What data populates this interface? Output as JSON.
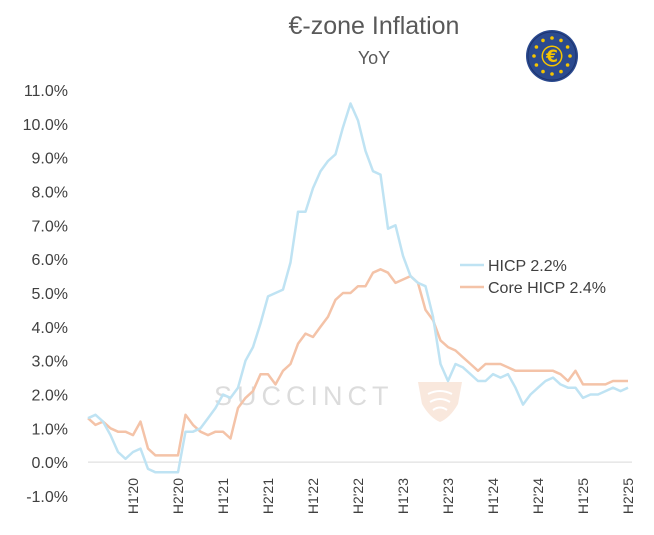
{
  "chart_data": {
    "type": "line",
    "title": "€-zone Inflation",
    "subtitle": "YoY",
    "watermark": "SUCCINCT",
    "ylim": [
      -1.0,
      11.0
    ],
    "yticks": [
      -1.0,
      0.0,
      1.0,
      2.0,
      3.0,
      4.0,
      5.0,
      6.0,
      7.0,
      8.0,
      9.0,
      10.0,
      11.0
    ],
    "ytick_labels": [
      "-1.0%",
      "0.0%",
      "1.0%",
      "2.0%",
      "3.0%",
      "4.0%",
      "5.0%",
      "6.0%",
      "7.0%",
      "8.0%",
      "9.0%",
      "10.0%",
      "11.0%"
    ],
    "xtick_labels": [
      "H1'20",
      "H2'20",
      "H1'21",
      "H2'21",
      "H1'22",
      "H2'22",
      "H1'23",
      "H2'23",
      "H1'24",
      "H2'24",
      "H1'25",
      "H2'25"
    ],
    "x_start": "2019-07",
    "x_end": "2025-07",
    "legend_position": "right-center",
    "grid": false,
    "series": [
      {
        "name": "HICP 2.2%",
        "color": "#bfe3f3",
        "values": [
          1.3,
          1.4,
          1.2,
          0.8,
          0.3,
          0.1,
          0.3,
          0.4,
          -0.2,
          -0.3,
          -0.3,
          -0.3,
          -0.3,
          0.9,
          0.9,
          1.0,
          1.3,
          1.6,
          2.0,
          1.9,
          2.2,
          3.0,
          3.4,
          4.1,
          4.9,
          5.0,
          5.1,
          5.9,
          7.4,
          7.4,
          8.1,
          8.6,
          8.9,
          9.1,
          9.9,
          10.6,
          10.1,
          9.2,
          8.6,
          8.5,
          6.9,
          7.0,
          6.1,
          5.5,
          5.3,
          5.2,
          4.3,
          2.9,
          2.4,
          2.9,
          2.8,
          2.6,
          2.4,
          2.4,
          2.6,
          2.5,
          2.6,
          2.2,
          1.7,
          2.0,
          2.2,
          2.4,
          2.5,
          2.3,
          2.2,
          2.2,
          1.9,
          2.0,
          2.0,
          2.1,
          2.2,
          2.1,
          2.2
        ],
        "end_value": 2.2
      },
      {
        "name": "Core HICP 2.4%",
        "color": "#f4c3a8",
        "values": [
          1.3,
          1.1,
          1.2,
          1.0,
          0.9,
          0.9,
          0.8,
          1.2,
          0.4,
          0.2,
          0.2,
          0.2,
          0.2,
          1.4,
          1.1,
          0.9,
          0.8,
          0.9,
          0.9,
          0.7,
          1.6,
          1.9,
          2.1,
          2.6,
          2.6,
          2.3,
          2.7,
          2.9,
          3.5,
          3.8,
          3.7,
          4.0,
          4.3,
          4.8,
          5.0,
          5.0,
          5.2,
          5.2,
          5.6,
          5.7,
          5.6,
          5.3,
          5.4,
          5.5,
          5.3,
          4.5,
          4.2,
          3.6,
          3.4,
          3.3,
          3.1,
          2.9,
          2.7,
          2.9,
          2.9,
          2.9,
          2.8,
          2.7,
          2.7,
          2.7,
          2.7,
          2.7,
          2.7,
          2.6,
          2.4,
          2.7,
          2.3,
          2.3,
          2.3,
          2.3,
          2.4,
          2.4,
          2.4
        ],
        "end_value": 2.4
      }
    ]
  }
}
